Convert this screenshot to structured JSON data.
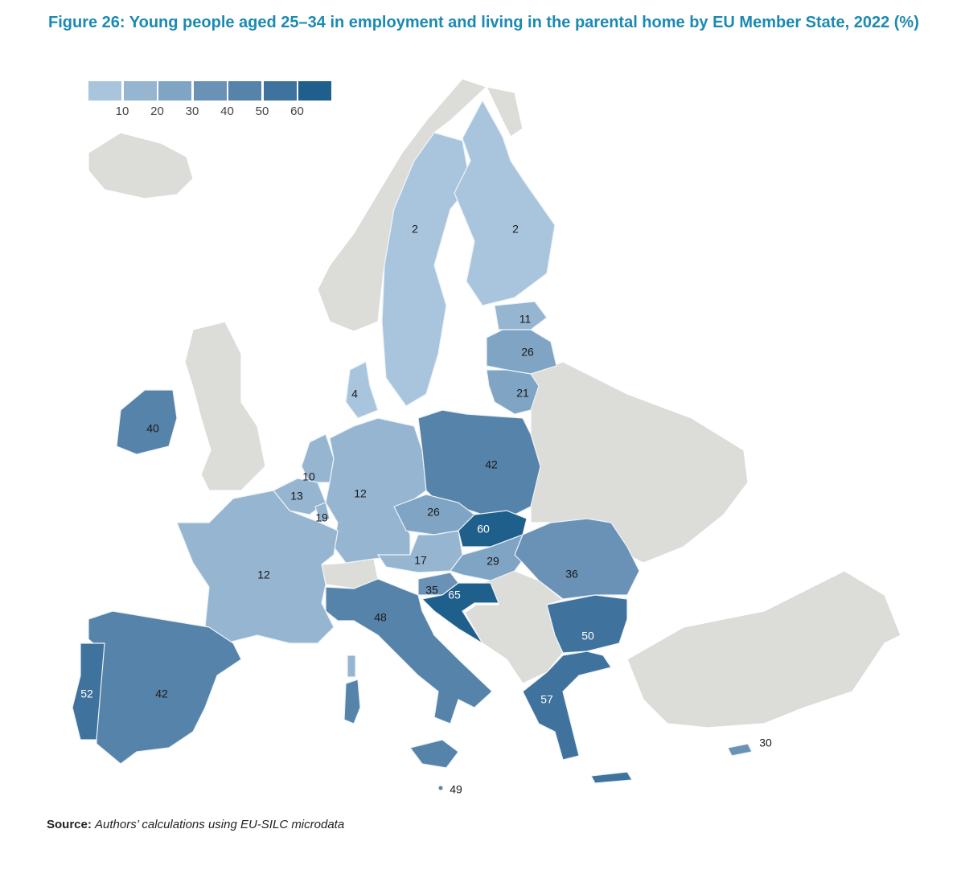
{
  "title": "Figure 26: Young people aged 25–34 in employment and living in the parental home by EU Member State, 2022 (%)",
  "source_label": "Source:",
  "source_text": "Authors’ calculations using EU-SILC microdata",
  "legend": {
    "ticks": [
      "10",
      "20",
      "30",
      "40",
      "50",
      "60"
    ],
    "colors": [
      "#a9c5dd",
      "#95b5d1",
      "#7fa4c4",
      "#6a92b6",
      "#5683a9",
      "#3f729c",
      "#1f5f8b"
    ]
  },
  "non_eu_color": "#dcdcd9",
  "countries": {
    "SE": {
      "name": "Sweden",
      "value": 2
    },
    "FI": {
      "name": "Finland",
      "value": 2
    },
    "EE": {
      "name": "Estonia",
      "value": 11
    },
    "LV": {
      "name": "Latvia",
      "value": 26
    },
    "LT": {
      "name": "Lithuania",
      "value": 21
    },
    "DK": {
      "name": "Denmark",
      "value": 4
    },
    "IE": {
      "name": "Ireland",
      "value": 40
    },
    "NL": {
      "name": "Netherlands",
      "value": 10
    },
    "BE": {
      "name": "Belgium",
      "value": 13
    },
    "LU": {
      "name": "Luxembourg",
      "value": 19
    },
    "DE": {
      "name": "Germany",
      "value": 12
    },
    "PL": {
      "name": "Poland",
      "value": 42
    },
    "CZ": {
      "name": "Czechia",
      "value": 26
    },
    "SK": {
      "name": "Slovakia",
      "value": 60
    },
    "AT": {
      "name": "Austria",
      "value": 17
    },
    "HU": {
      "name": "Hungary",
      "value": 29
    },
    "SI": {
      "name": "Slovenia",
      "value": 35
    },
    "HR": {
      "name": "Croatia",
      "value": 65
    },
    "RO": {
      "name": "Romania",
      "value": 36
    },
    "BG": {
      "name": "Bulgaria",
      "value": 50
    },
    "GR": {
      "name": "Greece",
      "value": 57
    },
    "CY": {
      "name": "Cyprus",
      "value": 30
    },
    "MT": {
      "name": "Malta",
      "value": 49
    },
    "IT": {
      "name": "Italy",
      "value": 48
    },
    "FR": {
      "name": "France",
      "value": 12
    },
    "ES": {
      "name": "Spain",
      "value": 42
    },
    "PT": {
      "name": "Portugal",
      "value": 52
    }
  }
}
